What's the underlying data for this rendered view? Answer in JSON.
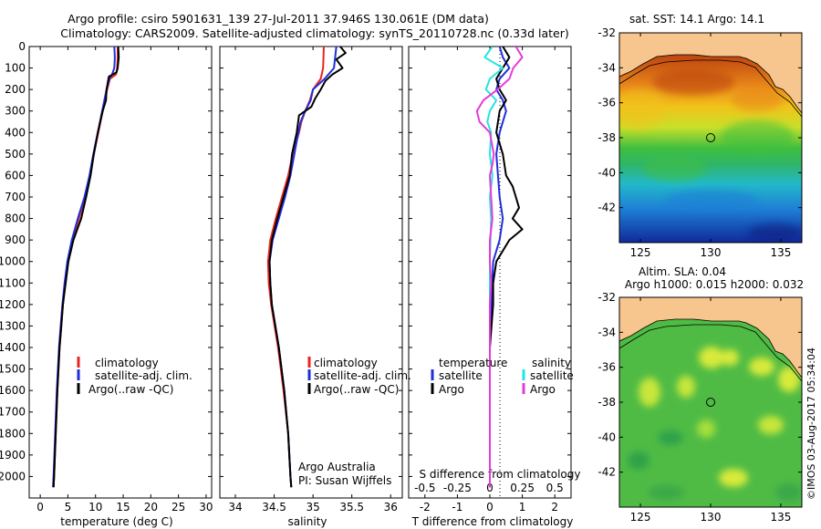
{
  "title": {
    "line1": "Argo profile: csiro 5901631_139 27-Jul-2011 37.946S 130.061E (DM data)",
    "line2": "Climatology: CARS2009. Satellite-adjusted climatology: synTS_20110728.nc (0.33d later)"
  },
  "colors": {
    "climatology": "#e8251f",
    "satellite": "#1f2fd9",
    "argo": "#000000",
    "satellite_s": "#26e3e3",
    "argo_s": "#e63bd9",
    "land": "#f7c58e"
  },
  "depth_axis": {
    "ticks": [
      0,
      100,
      200,
      300,
      400,
      500,
      600,
      700,
      800,
      900,
      1000,
      1100,
      1200,
      1300,
      1400,
      1500,
      1600,
      1700,
      1800,
      1900,
      2000
    ],
    "ylim": [
      0,
      2100
    ]
  },
  "chart_data": [
    {
      "type": "line",
      "xlabel": "temperature (deg C)",
      "xlim": [
        -2,
        31
      ],
      "xticks": [
        0,
        5,
        10,
        15,
        20,
        25,
        30
      ],
      "legend": [
        "climatology",
        "satellite-adj. clim.",
        "Argo(..raw -QC)"
      ],
      "series": [
        {
          "name": "climatology",
          "depth": [
            0,
            50,
            100,
            130,
            150,
            200,
            250,
            300,
            400,
            500,
            600,
            700,
            800,
            900,
            1000,
            1100,
            1200,
            1300,
            1400,
            1600,
            1800,
            2000,
            2050
          ],
          "values": [
            14.0,
            14.0,
            13.9,
            13.7,
            12.6,
            12.1,
            11.7,
            11.3,
            10.5,
            9.7,
            9.0,
            8.1,
            7.0,
            5.8,
            5.0,
            4.5,
            4.1,
            3.8,
            3.5,
            3.1,
            2.8,
            2.5,
            2.4
          ]
        },
        {
          "name": "satellite-adj. clim.",
          "depth": [
            0,
            50,
            100,
            130,
            150,
            200,
            250,
            300,
            400,
            500,
            600,
            700,
            800,
            900,
            1000,
            1100,
            1200,
            1300,
            1400,
            1600,
            1800,
            2000,
            2050
          ],
          "values": [
            13.4,
            13.5,
            13.4,
            13.0,
            12.5,
            12.0,
            11.6,
            11.2,
            10.4,
            9.6,
            8.9,
            8.0,
            6.8,
            5.7,
            4.9,
            4.4,
            4.0,
            3.7,
            3.4,
            3.0,
            2.7,
            2.4,
            2.3
          ]
        },
        {
          "name": "Argo(..raw -QC)",
          "depth": [
            0,
            50,
            100,
            120,
            140,
            200,
            250,
            300,
            400,
            500,
            600,
            700,
            800,
            900,
            1000,
            1100,
            1200,
            1300,
            1400,
            1600,
            1800,
            2000,
            2050
          ],
          "values": [
            14.1,
            14.2,
            14.0,
            13.8,
            12.4,
            12.0,
            11.9,
            11.3,
            10.4,
            9.7,
            9.1,
            8.3,
            7.4,
            6.0,
            5.1,
            4.6,
            4.1,
            3.8,
            3.5,
            3.1,
            2.8,
            2.5,
            2.4
          ]
        }
      ]
    },
    {
      "type": "line",
      "xlabel": "salinity",
      "xlim": [
        33.8,
        36.15
      ],
      "xticks": [
        34,
        34.5,
        35,
        35.5,
        36
      ],
      "xticklabels": [
        "34",
        "34.5",
        "35",
        "35.5",
        "36"
      ],
      "legend": [
        "climatology",
        "satellite-adj. clim.",
        "Argo(..raw -QC)"
      ],
      "annotation": [
        "Argo Australia",
        "PI: Susan Wijffels"
      ],
      "series": [
        {
          "name": "climatology",
          "depth": [
            0,
            100,
            150,
            200,
            250,
            300,
            350,
            400,
            500,
            600,
            700,
            800,
            900,
            1000,
            1100,
            1200,
            1400,
            1600,
            1800,
            2000,
            2050
          ],
          "values": [
            35.14,
            35.13,
            35.1,
            35.0,
            34.96,
            34.9,
            34.85,
            34.82,
            34.74,
            34.68,
            34.6,
            34.52,
            34.45,
            34.42,
            34.43,
            34.46,
            34.55,
            34.62,
            34.68,
            34.71,
            34.72
          ]
        },
        {
          "name": "satellite-adj. clim.",
          "depth": [
            0,
            100,
            150,
            200,
            250,
            300,
            350,
            400,
            500,
            600,
            700,
            800,
            900,
            1000,
            1100,
            1200,
            1400,
            1600,
            1800,
            2000,
            2050
          ],
          "values": [
            35.3,
            35.27,
            35.15,
            35.0,
            34.97,
            34.9,
            34.84,
            34.81,
            34.76,
            34.71,
            34.64,
            34.56,
            34.48,
            34.44,
            34.45,
            34.47,
            34.56,
            34.63,
            34.68,
            34.71,
            34.72
          ]
        },
        {
          "name": "Argo(..raw -QC)",
          "depth": [
            0,
            30,
            60,
            100,
            130,
            160,
            200,
            240,
            280,
            320,
            400,
            500,
            600,
            700,
            800,
            900,
            1000,
            1100,
            1200,
            1400,
            1600,
            1800,
            2000,
            2050
          ],
          "values": [
            35.35,
            35.42,
            35.3,
            35.38,
            35.25,
            35.16,
            35.1,
            35.03,
            34.98,
            34.82,
            34.79,
            34.73,
            34.7,
            34.62,
            34.54,
            34.47,
            34.44,
            34.45,
            34.47,
            34.56,
            34.63,
            34.68,
            34.71,
            34.72
          ]
        }
      ]
    },
    {
      "type": "line",
      "xlabel": "T difference from climatology",
      "xlabel2": "S difference from climatology",
      "xlim": [
        -2.5,
        2.5
      ],
      "xticks": [
        -2,
        -1,
        0,
        1,
        2
      ],
      "top_scale": {
        "xlim": [
          -0.625,
          0.625
        ],
        "ticks": [
          -0.5,
          -0.25,
          0,
          0.25,
          0.5
        ],
        "ticklabels": [
          "-0.5",
          "-0.25",
          "0",
          "0.25",
          "0.5"
        ]
      },
      "legend_title_t": "temperature",
      "legend_title_s": "salinity",
      "legend": [
        "satellite",
        "Argo",
        "satellite",
        "Argo"
      ],
      "series": [
        {
          "name": "T satellite",
          "depth": [
            0,
            50,
            100,
            150,
            200,
            250,
            300,
            400,
            500,
            600,
            700,
            800,
            900,
            1000,
            1200,
            1400,
            1600,
            1800,
            2000,
            2050
          ],
          "values": [
            0.3,
            0.4,
            0.6,
            0.3,
            0.2,
            0.4,
            0.5,
            0.3,
            0.2,
            0.25,
            0.3,
            0.4,
            0.3,
            0.1,
            0.05,
            0.0,
            0.0,
            0.0,
            0.0,
            0.0
          ]
        },
        {
          "name": "T Argo",
          "depth": [
            0,
            50,
            100,
            150,
            200,
            250,
            300,
            400,
            500,
            600,
            650,
            700,
            750,
            800,
            850,
            900,
            1000,
            1100,
            1200,
            1400,
            1600,
            1800,
            2000,
            2050
          ],
          "values": [
            0.4,
            0.6,
            0.4,
            0.2,
            0.3,
            0.5,
            0.3,
            0.2,
            0.4,
            0.5,
            0.7,
            0.8,
            0.9,
            0.7,
            1.0,
            0.6,
            0.2,
            0.1,
            0.1,
            0.0,
            0.0,
            0.0,
            0.0,
            0.0
          ]
        },
        {
          "name": "S satellite",
          "depth": [
            0,
            50,
            100,
            150,
            200,
            250,
            300,
            350,
            400,
            500,
            600,
            700,
            800,
            1000,
            1200,
            1400,
            1600,
            1800,
            2000,
            2050
          ],
          "values": [
            0.02,
            -0.04,
            0.1,
            0.0,
            -0.03,
            0.05,
            0.0,
            -0.02,
            0.01,
            0.0,
            0.02,
            0.0,
            0.01,
            0.0,
            0.0,
            0.0,
            0.0,
            0.0,
            0.0,
            0.0
          ]
        },
        {
          "name": "S Argo",
          "depth": [
            0,
            50,
            100,
            150,
            200,
            250,
            300,
            350,
            400,
            500,
            550,
            600,
            700,
            800,
            900,
            1000,
            1100,
            1200,
            1400,
            1600,
            1800,
            2000,
            2050
          ],
          "values": [
            0.2,
            0.25,
            0.18,
            0.15,
            0.06,
            -0.05,
            -0.1,
            -0.08,
            0.0,
            0.03,
            0.02,
            0.0,
            0.01,
            0.02,
            0.0,
            0.0,
            0.01,
            0.0,
            0.0,
            0.0,
            0.0,
            0.0,
            0.0
          ]
        }
      ]
    },
    {
      "type": "heatmap",
      "title": "sat. SST: 14.1  Argo: 14.1",
      "xlim": [
        123.5,
        136.5
      ],
      "ylim": [
        -44,
        -32
      ],
      "xticks": [
        125,
        130,
        135
      ],
      "yticks": [
        -32,
        -34,
        -36,
        -38,
        -40,
        -42
      ],
      "marker": [
        130.061,
        -37.946
      ]
    },
    {
      "type": "heatmap",
      "title": "Altim. SLA: 0.04",
      "title2": "Argo h1000: 0.015  h2000: 0.032",
      "xlim": [
        123.5,
        136.5
      ],
      "ylim": [
        -44,
        -32
      ],
      "xticks": [
        125,
        130,
        135
      ],
      "yticks": [
        -32,
        -34,
        -36,
        -38,
        -40,
        -42
      ],
      "marker": [
        130.061,
        -37.946
      ]
    }
  ],
  "watermark": "©IMOS 03-Aug-2017 05:34:04"
}
